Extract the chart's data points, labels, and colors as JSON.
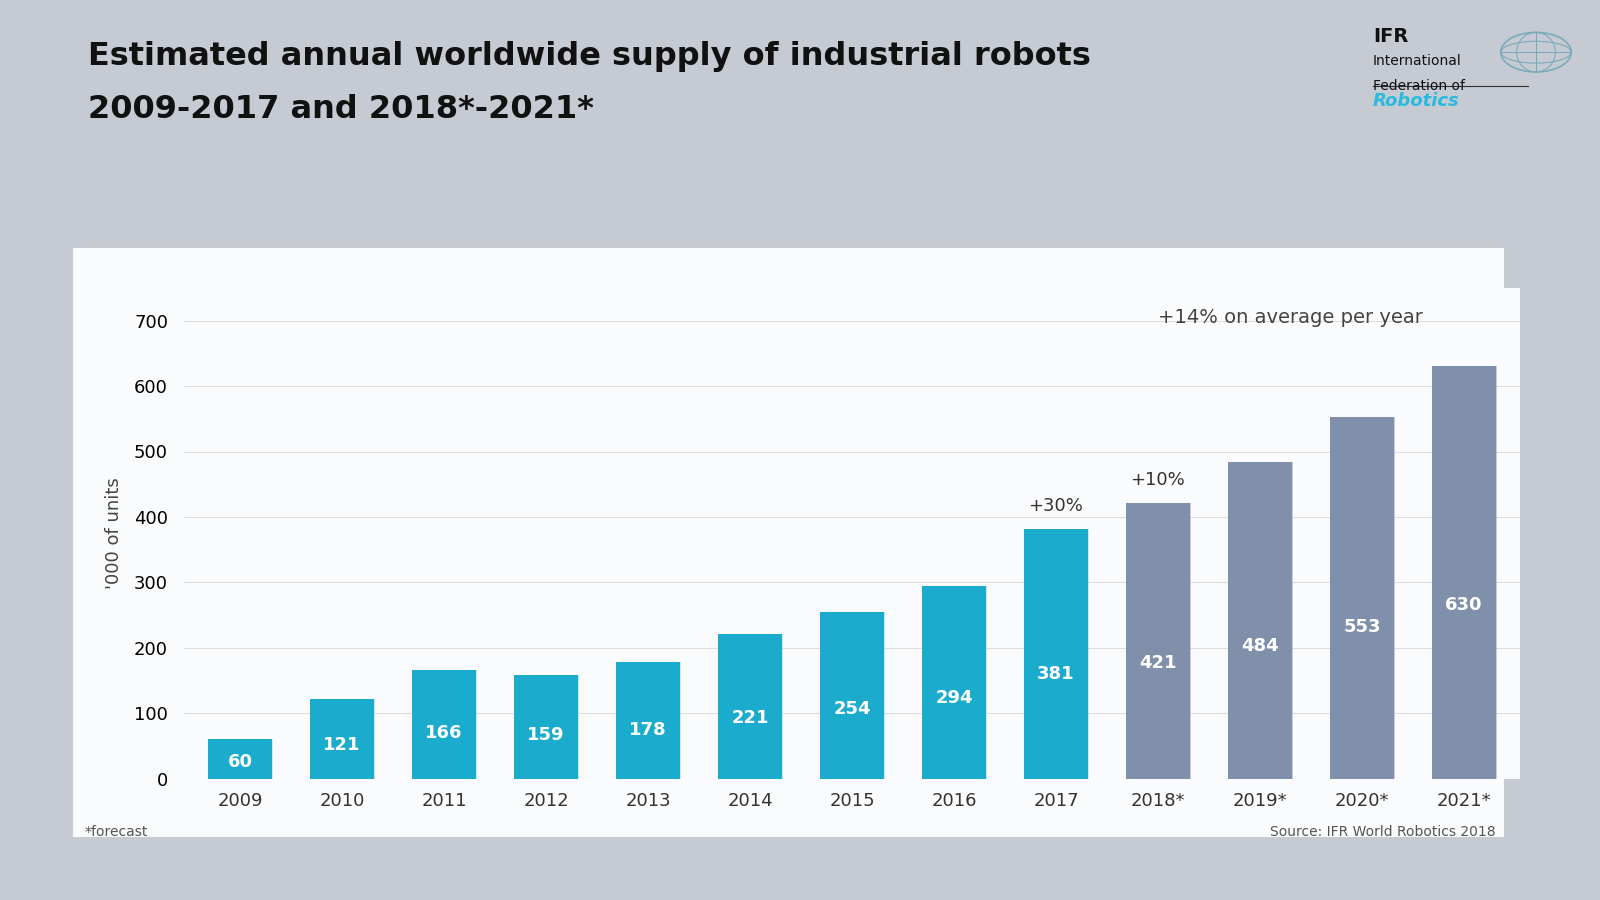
{
  "categories": [
    "2009",
    "2010",
    "2011",
    "2012",
    "2013",
    "2014",
    "2015",
    "2016",
    "2017",
    "2018*",
    "2019*",
    "2020*",
    "2021*"
  ],
  "values": [
    60,
    121,
    166,
    159,
    178,
    221,
    254,
    294,
    381,
    421,
    484,
    553,
    630
  ],
  "bar_color_actual": "#1AABCD",
  "bar_color_forecast": "#8090AA",
  "bar_shadow_actual": "#A8D8E8",
  "bar_shadow_forecast": "#A0AABC",
  "actual_count": 9,
  "title_line1": "Estimated annual worldwide supply of industrial robots",
  "title_line2": "2009-2017 and 2018*-2021*",
  "ylabel": "'000 of units",
  "ylim": [
    0,
    750
  ],
  "yticks": [
    0,
    100,
    200,
    300,
    400,
    500,
    600,
    700
  ],
  "annotation_2017": "+30%",
  "annotation_2018": "+10%",
  "annotation_avg": "+14% on average per year",
  "footnote": "*forecast",
  "source": "Source: IFR World Robotics 2018",
  "bg_outer": "#C5CAD3",
  "bg_white": "#FAFBFC",
  "title_fontsize": 23,
  "ylabel_fontsize": 13,
  "tick_fontsize": 13,
  "bar_label_fontsize": 13,
  "annot_fontsize": 13
}
